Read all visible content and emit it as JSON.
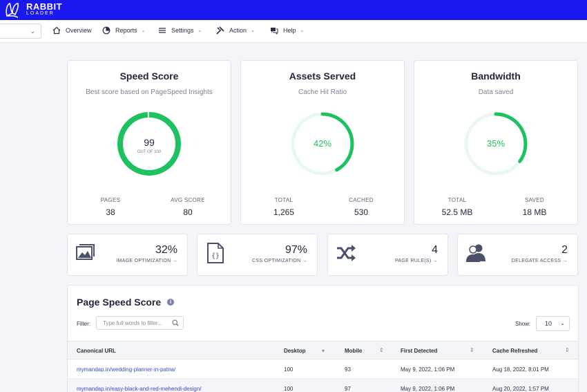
{
  "brand": {
    "line1": "RABBIT",
    "line2": "LOADER",
    "color": "#1a1af0"
  },
  "nav": {
    "items": [
      {
        "label": "Overview",
        "icon": "home-icon",
        "caret": false
      },
      {
        "label": "Reports",
        "icon": "pie-chart-icon",
        "caret": true
      },
      {
        "label": "Settings",
        "icon": "sliders-icon",
        "caret": true
      },
      {
        "label": "Action",
        "icon": "tools-icon",
        "caret": true
      },
      {
        "label": "Help",
        "icon": "chat-icon",
        "caret": true
      }
    ]
  },
  "score_cards": [
    {
      "title": "Speed Score",
      "subtitle": "Best score based on PageSpeed Insights",
      "value": "99",
      "value_sub": "OUT OF 100",
      "fraction": 0.99,
      "stats": [
        {
          "label": "PAGES",
          "value": "38"
        },
        {
          "label": "AVG SCORE",
          "value": "80"
        }
      ]
    },
    {
      "title": "Assets Served",
      "subtitle": "Cache Hit Ratio",
      "value": "42%",
      "fraction": 0.42,
      "stats": [
        {
          "label": "TOTAL",
          "value": "1,265"
        },
        {
          "label": "CACHED",
          "value": "530"
        }
      ]
    },
    {
      "title": "Bandwidth",
      "subtitle": "Data saved",
      "value": "35%",
      "fraction": 0.35,
      "stats": [
        {
          "label": "TOTAL",
          "value": "52.5 MB"
        },
        {
          "label": "SAVED",
          "value": "18 MB"
        }
      ]
    }
  ],
  "colors": {
    "ring": "#1ec15f",
    "ring_track": "#e8f8ee",
    "accent_link": "#3a48c8"
  },
  "small_cards": [
    {
      "value": "32%",
      "link": "IMAGE OPTIMIZATION →",
      "icon": "image-icon"
    },
    {
      "value": "97%",
      "link": "CSS OPTIMIZATION →",
      "icon": "css-file-icon"
    },
    {
      "value": "4",
      "link": "PAGE RULE(S) →",
      "icon": "shuffle-icon"
    },
    {
      "value": "2",
      "link": "DELEGATE ACCESS →",
      "icon": "users-icon"
    }
  ],
  "table": {
    "title": "Page Speed Score",
    "filter_label": "Filter:",
    "filter_placeholder": "Type full words to filter...",
    "show_label": "Show:",
    "show_value": "10",
    "columns": [
      "Canonical URL",
      "Desktop",
      "Mobile",
      "First Detected",
      "Cache Refreshed"
    ],
    "rows": [
      [
        "mymandap.in/wedding-planner-in-patna/",
        "100",
        "93",
        "May 9, 2022, 1:06 PM",
        "Aug 18, 2022, 8:01 PM"
      ],
      [
        "mymandap.in/easy-black-and-red-mehendi-design/",
        "100",
        "97",
        "May 9, 2022, 1:06 PM",
        "Aug 20, 2022, 1:57 PM"
      ]
    ]
  }
}
